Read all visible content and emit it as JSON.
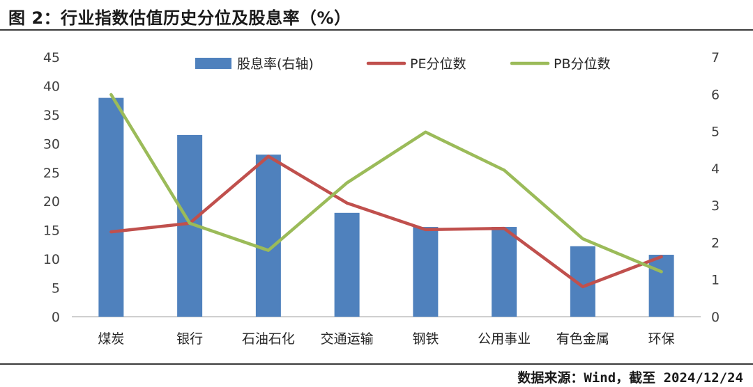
{
  "title": "图 2：行业指数估值历史分位及股息率（%）",
  "source": "数据来源：Wind，截至 2024/12/24",
  "chart_data": {
    "type": "bar",
    "categories": [
      "煤炭",
      "银行",
      "石油石化",
      "交通运输",
      "钢铁",
      "公用事业",
      "有色金属",
      "环保"
    ],
    "y_left": {
      "min": 0,
      "max": 45,
      "step": 5,
      "ticks": [
        "0",
        "5",
        "10",
        "15",
        "20",
        "25",
        "30",
        "35",
        "40",
        "45"
      ]
    },
    "y_right": {
      "min": 0,
      "max": 7,
      "step": 1,
      "ticks": [
        "0",
        "1",
        "2",
        "3",
        "4",
        "5",
        "6",
        "7"
      ]
    },
    "grid": false,
    "legend_position": "top",
    "series": [
      {
        "name": "股息率(右轴)",
        "type": "bar",
        "axis": "right",
        "color": "#4f81bd",
        "values": [
          5.9,
          4.9,
          4.37,
          2.8,
          2.42,
          2.42,
          1.9,
          1.67
        ]
      },
      {
        "name": "PE分位数",
        "type": "line",
        "axis": "left",
        "color": "#c0504d",
        "values": [
          14.7,
          16.2,
          27.8,
          19.7,
          15.1,
          15.3,
          5.2,
          10.4
        ]
      },
      {
        "name": "PB分位数",
        "type": "line",
        "axis": "left",
        "color": "#9bbb59",
        "values": [
          38.5,
          16.2,
          11.5,
          23.2,
          32.0,
          25.4,
          13.5,
          7.8
        ]
      }
    ]
  }
}
